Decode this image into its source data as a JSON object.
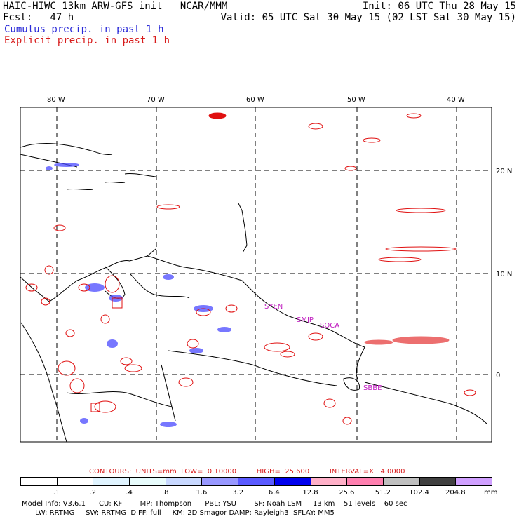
{
  "header": {
    "title": "HAIC-HIWC 13km ARW-GFS init   NCAR/MMM",
    "init": "Init: 06 UTC Thu 28 May 15",
    "fcst": "Fcst:   47 h",
    "valid": "Valid: 05 UTC Sat 30 May 15 (02 LST Sat 30 May 15)",
    "cumulus_label": "Cumulus precip. in past 1 h",
    "explicit_label": "Explicit precip. in past 1 h"
  },
  "map": {
    "lon_labels": [
      "80 W",
      "70 W",
      "60 W",
      "50 W",
      "40 W"
    ],
    "lat_labels": [
      "20 N",
      "10 N",
      "0"
    ],
    "stations": [
      "SYEN",
      "SMJP",
      "SOCA",
      "SBBE"
    ],
    "colors": {
      "cumulus": "#3b3bff",
      "explicit": "#e01010",
      "station": "#c020c0"
    }
  },
  "legend": {
    "contours_line": "CONTOURS:  UNITS=mm  LOW=  0.10000         HIGH=  25.600         INTERVAL=X   4.0000",
    "levels": [
      ".1",
      ".2",
      ".4",
      ".8",
      "1.6",
      "3.2",
      "6.4",
      "12.8",
      "25.6",
      "51.2",
      "102.4",
      "204.8"
    ],
    "colors": [
      "#ffffff",
      "#ffffff",
      "#e0f4ff",
      "#e8fcfc",
      "#c8d8ff",
      "#9898ff",
      "#5a5aff",
      "#0000ee",
      "#ffb0c8",
      "#ff80b0",
      "#c0c0c0",
      "#404040",
      "#d0a0ff"
    ],
    "unit": "mm"
  },
  "footer": {
    "line1": "Model Info: V3.6.1      CU: KF        MP: Thompson      PBL: YSU        SF: Noah LSM     13 km    51 levels    60 sec",
    "line2": "      LW: RRTMG     SW: RRTMG  DIFF: full     KM: 2D Smagor DAMP: Rayleigh3  SFLAY: MM5"
  }
}
